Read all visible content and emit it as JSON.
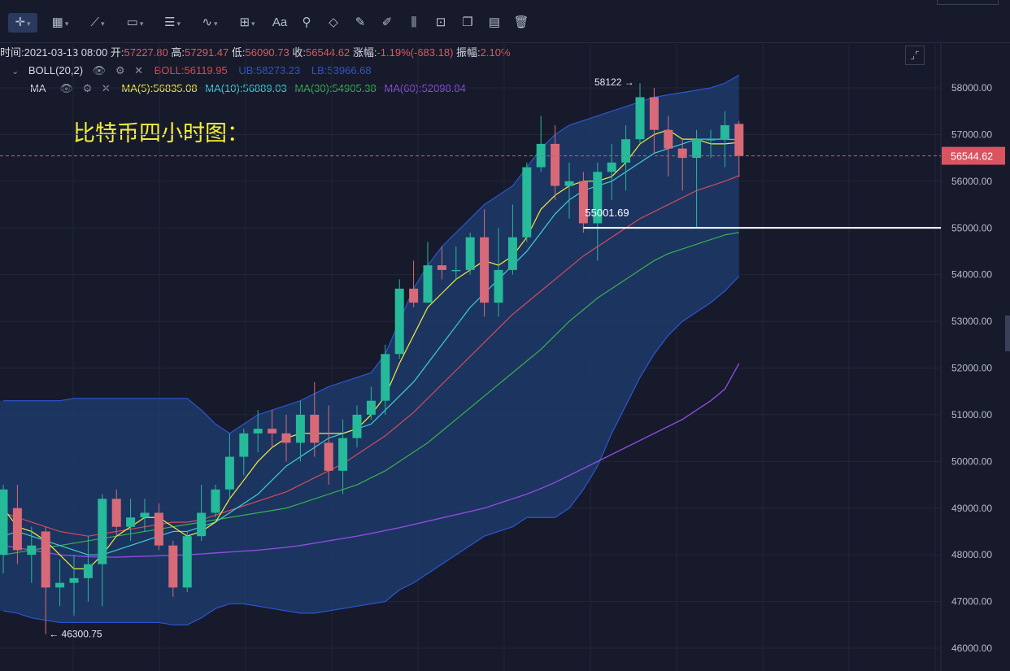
{
  "toolbar": {
    "tools": [
      {
        "name": "crosshair-icon",
        "glyph": "✛",
        "caret": true,
        "active": true
      },
      {
        "name": "line-style-icon",
        "glyph": "▦",
        "caret": true
      },
      {
        "name": "trend-line-icon",
        "glyph": "⟋",
        "caret": true
      },
      {
        "name": "rectangle-icon",
        "glyph": "▭",
        "caret": true
      },
      {
        "name": "fib-icon",
        "glyph": "☰",
        "caret": true
      },
      {
        "name": "wave-icon",
        "glyph": "∿",
        "caret": true
      },
      {
        "name": "measure-icon",
        "glyph": "⊞",
        "caret": true
      },
      {
        "name": "text-icon",
        "glyph": "Aa",
        "caret": false
      },
      {
        "name": "pattern-icon",
        "glyph": "⚲",
        "caret": false
      },
      {
        "name": "eraser-icon",
        "glyph": "◇",
        "caret": false
      },
      {
        "name": "ruler-icon",
        "glyph": "✎",
        "caret": false
      },
      {
        "name": "brush-icon",
        "glyph": "✐",
        "caret": false
      },
      {
        "name": "candle-tool-icon",
        "glyph": "⫼",
        "caret": false
      },
      {
        "name": "lock-icon",
        "glyph": "⊡",
        "caret": false
      },
      {
        "name": "copy-icon",
        "glyph": "❐",
        "caret": false
      },
      {
        "name": "calendar-icon",
        "glyph": "▤",
        "caret": false
      },
      {
        "name": "trash-icon",
        "glyph": "🗑",
        "caret": false
      }
    ]
  },
  "info": {
    "time_label": "时间:",
    "time": "2021-03-13 08:00",
    "open_label": "开:",
    "open": "57227.80",
    "high_label": "高:",
    "high": "57291.47",
    "low_label": "低:",
    "low": "56090.73",
    "close_label": "收:",
    "close": "56544.62",
    "change_label": "涨幅:",
    "change": "-1.19%(-683.18)",
    "amp_label": "振幅:",
    "amp": "2.10%"
  },
  "boll": {
    "label": "BOLL(20,2)",
    "mid": "BOLL:56119.95",
    "ub": "UB:58273.23",
    "lb": "LB:53966.68"
  },
  "ma": {
    "label": "MA",
    "ma5": "MA(5):56835.08",
    "ma10": "MA(10):56889.03",
    "ma30": "MA(30):54905.38",
    "ma60": "MA(60):52098.84"
  },
  "title": "比特币四小时图：",
  "colors": {
    "up": "#26b99a",
    "down": "#d86a78",
    "ma5": "#f3ee3a",
    "ma10": "#3bd1d8",
    "ma30": "#37b24d",
    "ma60": "#8f4be0",
    "mid": "#d44b5a",
    "band": "#1f3f74",
    "bandEdge": "#2c56d3",
    "price": "#d9545f"
  },
  "chart_data": {
    "type": "candlestick",
    "title": "比特币四小时图：",
    "ylim": [
      45800,
      58500
    ],
    "yticks": [
      "46000.00",
      "47000.00",
      "48000.00",
      "49000.00",
      "50000.00",
      "51000.00",
      "52000.00",
      "53000.00",
      "54000.00",
      "55000.00",
      "56000.00",
      "57000.00",
      "58000.00"
    ],
    "last_price": "56544.62",
    "high_marker": "58122",
    "low_marker": "46300.75",
    "hline_label": "55001.69",
    "hline_value": 55001.69,
    "candles": [
      [
        48000,
        49400,
        49500,
        47600
      ],
      [
        49000,
        48100,
        49500,
        47800
      ],
      [
        48000,
        48200,
        48600,
        47400
      ],
      [
        48500,
        47300,
        48600,
        46300
      ],
      [
        47300,
        47400,
        47900,
        46900
      ],
      [
        47400,
        47500,
        48000,
        46700
      ],
      [
        47500,
        47800,
        48400,
        47000
      ],
      [
        47800,
        49200,
        49300,
        46900
      ],
      [
        49200,
        48600,
        49400,
        48400
      ],
      [
        48600,
        48800,
        49200,
        48300
      ],
      [
        48800,
        48900,
        49200,
        48500
      ],
      [
        48900,
        48200,
        49100,
        48100
      ],
      [
        48200,
        47300,
        48300,
        47100
      ],
      [
        47300,
        48400,
        48500,
        47200
      ],
      [
        48400,
        48900,
        49500,
        48300
      ],
      [
        48900,
        49400,
        49500,
        48800
      ],
      [
        49400,
        50100,
        50600,
        49200
      ],
      [
        50100,
        50600,
        50700,
        49700
      ],
      [
        50600,
        50700,
        51100,
        50200
      ],
      [
        50700,
        50600,
        51100,
        50300
      ],
      [
        50600,
        50400,
        51000,
        50000
      ],
      [
        50400,
        51000,
        51300,
        50000
      ],
      [
        51000,
        50400,
        51700,
        50100
      ],
      [
        50400,
        49800,
        51200,
        49500
      ],
      [
        49800,
        50500,
        50900,
        49300
      ],
      [
        50500,
        51000,
        51200,
        50300
      ],
      [
        51000,
        51300,
        51600,
        50900
      ],
      [
        51300,
        52300,
        52500,
        51000
      ],
      [
        52300,
        53700,
        53900,
        52200
      ],
      [
        53700,
        53400,
        54300,
        53300
      ],
      [
        53400,
        54200,
        54700,
        53400
      ],
      [
        54200,
        54100,
        54600,
        53900
      ],
      [
        54100,
        54100,
        54600,
        53900
      ],
      [
        54100,
        54800,
        54900,
        54000
      ],
      [
        54800,
        53400,
        55400,
        53100
      ],
      [
        53400,
        54100,
        55000,
        53100
      ],
      [
        54100,
        54800,
        55500,
        54000
      ],
      [
        54800,
        56300,
        56400,
        54700
      ],
      [
        56300,
        56800,
        57400,
        56200
      ],
      [
        56800,
        55900,
        57200,
        55600
      ],
      [
        55900,
        56000,
        56400,
        55200
      ],
      [
        56000,
        55100,
        56200,
        54900
      ],
      [
        55100,
        56200,
        56400,
        54300
      ],
      [
        56200,
        56400,
        56800,
        55600
      ],
      [
        56400,
        56900,
        57200,
        55800
      ],
      [
        56900,
        57800,
        58100,
        56800
      ],
      [
        57800,
        57100,
        58000,
        56600
      ],
      [
        57100,
        56700,
        57400,
        56100
      ],
      [
        56700,
        56500,
        56900,
        55800
      ],
      [
        56500,
        56900,
        57100,
        55000
      ],
      [
        56900,
        56900,
        57100,
        56500
      ],
      [
        56900,
        57200,
        57500,
        56300
      ],
      [
        57227.8,
        56544.62,
        57291.47,
        56090.73
      ]
    ],
    "ma5": [
      49000,
      48600,
      48500,
      48300,
      48000,
      47700,
      47700,
      48000,
      48400,
      48600,
      48800,
      48800,
      48600,
      48400,
      48500,
      48700,
      49200,
      49600,
      50000,
      50300,
      50500,
      50600,
      50600,
      50600,
      50600,
      50700,
      51000,
      51400,
      52100,
      52700,
      53300,
      53600,
      53900,
      54100,
      54300,
      54200,
      54400,
      54800,
      55400,
      55700,
      55900,
      56000,
      56000,
      56100,
      56400,
      56800,
      57000,
      57100,
      56900,
      56900,
      56800,
      56800,
      56830
    ],
    "ma10": [
      48400,
      48500,
      48400,
      48300,
      48200,
      48100,
      48000,
      48000,
      48100,
      48200,
      48300,
      48400,
      48500,
      48500,
      48600,
      48700,
      48900,
      49100,
      49300,
      49600,
      49900,
      50100,
      50300,
      50500,
      50600,
      50700,
      50800,
      51100,
      51400,
      51700,
      52100,
      52500,
      52900,
      53300,
      53600,
      53900,
      54200,
      54500,
      54900,
      55300,
      55600,
      55800,
      55900,
      56000,
      56200,
      56400,
      56600,
      56700,
      56800,
      56900,
      56900,
      56900,
      56890
    ],
    "ma30": [
      48000,
      48050,
      48100,
      48150,
      48200,
      48250,
      48300,
      48350,
      48400,
      48450,
      48500,
      48550,
      48600,
      48650,
      48700,
      48750,
      48800,
      48850,
      48900,
      48950,
      49000,
      49100,
      49200,
      49300,
      49400,
      49500,
      49650,
      49800,
      50000,
      50200,
      50400,
      50650,
      50900,
      51150,
      51400,
      51650,
      51900,
      52150,
      52400,
      52700,
      53000,
      53250,
      53500,
      53700,
      53900,
      54100,
      54300,
      54450,
      54550,
      54650,
      54750,
      54850,
      54905
    ],
    "ma60": [
      48200,
      48150,
      48100,
      48050,
      48000,
      47980,
      47960,
      47950,
      47950,
      47960,
      47970,
      47980,
      47990,
      48000,
      48020,
      48040,
      48060,
      48080,
      48100,
      48130,
      48160,
      48200,
      48250,
      48300,
      48350,
      48400,
      48460,
      48520,
      48580,
      48650,
      48720,
      48790,
      48860,
      48930,
      49000,
      49100,
      49200,
      49300,
      49420,
      49550,
      49700,
      49850,
      50000,
      50150,
      50300,
      50450,
      50600,
      50750,
      50900,
      51100,
      51300,
      51550,
      52099
    ],
    "boll_mid": [
      48900,
      48800,
      48700,
      48600,
      48500,
      48450,
      48400,
      48450,
      48500,
      48550,
      48600,
      48650,
      48700,
      48700,
      48750,
      48850,
      48950,
      49050,
      49150,
      49250,
      49350,
      49500,
      49650,
      49800,
      49950,
      50150,
      50350,
      50550,
      50800,
      51050,
      51350,
      51650,
      51950,
      52250,
      52550,
      52850,
      53150,
      53400,
      53650,
      53900,
      54150,
      54400,
      54600,
      54800,
      55000,
      55200,
      55350,
      55500,
      55650,
      55800,
      55900,
      56000,
      56120
    ],
    "boll_ub": [
      51300,
      51300,
      51300,
      51300,
      51300,
      51350,
      51350,
      51350,
      51350,
      51350,
      51350,
      51350,
      51350,
      51350,
      51100,
      50800,
      50600,
      50800,
      51000,
      51100,
      51200,
      51300,
      51450,
      51600,
      51700,
      51800,
      51900,
      52300,
      53000,
      53700,
      54200,
      54600,
      54900,
      55200,
      55500,
      55700,
      55900,
      56300,
      56700,
      57000,
      57200,
      57300,
      57400,
      57500,
      57600,
      57700,
      57800,
      57850,
      57900,
      57950,
      58000,
      58100,
      58273
    ],
    "boll_lb": [
      46800,
      46750,
      46650,
      46600,
      46550,
      46550,
      46550,
      46550,
      46550,
      46550,
      46550,
      46550,
      46500,
      46500,
      46650,
      46850,
      46950,
      46950,
      46900,
      46850,
      46800,
      46750,
      46750,
      46800,
      46850,
      46900,
      46950,
      47000,
      47250,
      47400,
      47600,
      47800,
      48000,
      48200,
      48400,
      48500,
      48600,
      48800,
      48800,
      48800,
      49000,
      49400,
      49900,
      50600,
      51200,
      51800,
      52300,
      52700,
      53000,
      53200,
      53400,
      53650,
      53967
    ]
  }
}
